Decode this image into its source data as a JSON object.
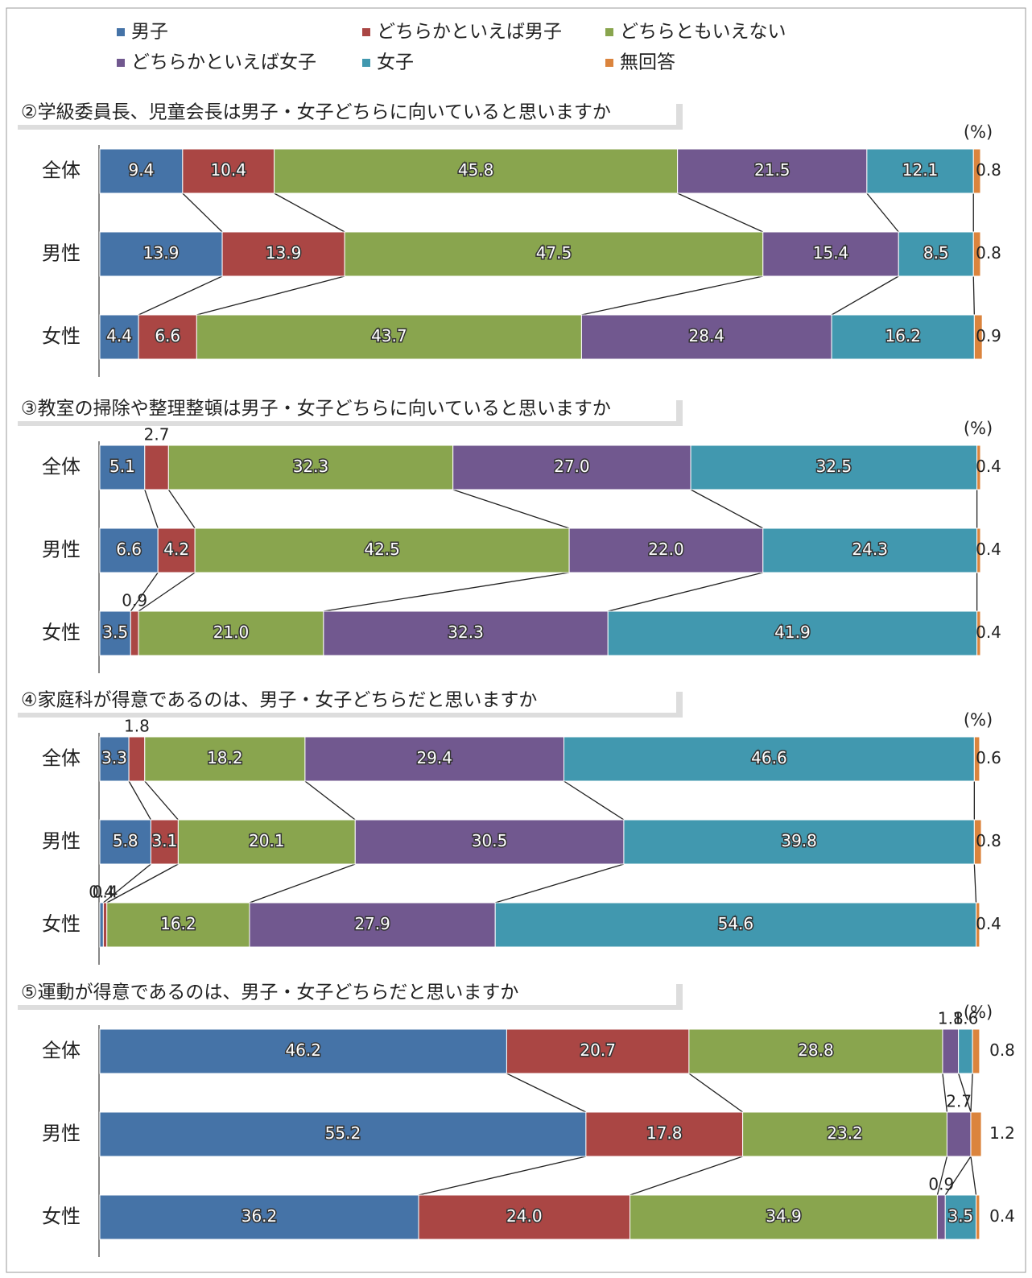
{
  "chart_data": [
    {
      "type": "bar",
      "title": "②学級委員長、児童会長は男子・女子どちらに向いていると思いますか",
      "unit": "(%)",
      "categories": [
        "全体",
        "男性",
        "女性"
      ],
      "xlim": [
        0,
        100
      ],
      "series": [
        {
          "name": "男子",
          "color": "#4573a7",
          "values": [
            9.4,
            13.9,
            4.4
          ],
          "value_labels": [
            "9.4",
            "13.9",
            "4.4"
          ]
        },
        {
          "name": "どちらかといえば男子",
          "color": "#aa4644",
          "values": [
            10.4,
            13.9,
            6.6
          ],
          "value_labels": [
            "10.4",
            "13.9",
            "6.6"
          ]
        },
        {
          "name": "どちらともいえない",
          "color": "#89a54e",
          "values": [
            45.8,
            47.5,
            43.7
          ],
          "value_labels": [
            "45.8",
            "47.5",
            "43.7"
          ]
        },
        {
          "name": "どちらかといえば女子",
          "color": "#71588f",
          "values": [
            21.5,
            15.4,
            28.4
          ],
          "value_labels": [
            "21.5",
            "15.4",
            "28.4"
          ]
        },
        {
          "name": "女子",
          "color": "#4198af",
          "values": [
            12.1,
            8.5,
            16.2
          ],
          "value_labels": [
            "12.1",
            "8.5",
            "16.2"
          ]
        },
        {
          "name": "無回答",
          "color": "#db843d",
          "values": [
            0.8,
            0.8,
            0.9
          ],
          "value_labels": [
            "0.8",
            "0.8",
            "0.9"
          ]
        }
      ]
    },
    {
      "type": "bar",
      "title": "③教室の掃除や整理整頓は男子・女子どちらに向いていると思いますか",
      "unit": "(%)",
      "categories": [
        "全体",
        "男性",
        "女性"
      ],
      "xlim": [
        0,
        100
      ],
      "series": [
        {
          "name": "男子",
          "color": "#4573a7",
          "values": [
            5.1,
            6.6,
            3.5
          ],
          "value_labels": [
            "5.1",
            "6.6",
            "3.5"
          ]
        },
        {
          "name": "どちらかといえば男子",
          "color": "#aa4644",
          "values": [
            2.7,
            4.2,
            0.9
          ],
          "value_labels": [
            "2.7",
            "4.2",
            "0.9"
          ]
        },
        {
          "name": "どちらともいえない",
          "color": "#89a54e",
          "values": [
            32.3,
            42.5,
            21.0
          ],
          "value_labels": [
            "32.3",
            "42.5",
            "21.0"
          ]
        },
        {
          "name": "どちらかといえば女子",
          "color": "#71588f",
          "values": [
            27.0,
            22.0,
            32.3
          ],
          "value_labels": [
            "27.0",
            "22.0",
            "32.3"
          ]
        },
        {
          "name": "女子",
          "color": "#4198af",
          "values": [
            32.5,
            24.3,
            41.9
          ],
          "value_labels": [
            "32.5",
            "24.3",
            "41.9"
          ]
        },
        {
          "name": "無回答",
          "color": "#db843d",
          "values": [
            0.4,
            0.4,
            0.4
          ],
          "value_labels": [
            "0.4",
            "0.4",
            "0.4"
          ]
        }
      ]
    },
    {
      "type": "bar",
      "title": "④家庭科が得意であるのは、男子・女子どちらだと思いますか",
      "unit": "(%)",
      "categories": [
        "全体",
        "男性",
        "女性"
      ],
      "xlim": [
        0,
        100
      ],
      "series": [
        {
          "name": "男子",
          "color": "#4573a7",
          "values": [
            3.3,
            5.8,
            0.4
          ],
          "value_labels": [
            "3.3",
            "5.8",
            "0.4"
          ]
        },
        {
          "name": "どちらかといえば男子",
          "color": "#aa4644",
          "values": [
            1.8,
            3.1,
            0.4
          ],
          "value_labels": [
            "1.8",
            "3.1",
            "0.4"
          ]
        },
        {
          "name": "どちらともいえない",
          "color": "#89a54e",
          "values": [
            18.2,
            20.1,
            16.2
          ],
          "value_labels": [
            "18.2",
            "20.1",
            "16.2"
          ]
        },
        {
          "name": "どちらかといえば女子",
          "color": "#71588f",
          "values": [
            29.4,
            30.5,
            27.9
          ],
          "value_labels": [
            "29.4",
            "30.5",
            "27.9"
          ]
        },
        {
          "name": "女子",
          "color": "#4198af",
          "values": [
            46.6,
            39.8,
            54.6
          ],
          "value_labels": [
            "46.6",
            "39.8",
            "54.6"
          ]
        },
        {
          "name": "無回答",
          "color": "#db843d",
          "values": [
            0.6,
            0.8,
            0.4
          ],
          "value_labels": [
            "0.6",
            "0.8",
            "0.4"
          ]
        }
      ]
    },
    {
      "type": "bar",
      "title": "⑤運動が得意であるのは、男子・女子どちらだと思いますか",
      "unit": "(%)",
      "categories": [
        "全体",
        "男性",
        "女性"
      ],
      "xlim": [
        0,
        100
      ],
      "series": [
        {
          "name": "男子",
          "color": "#4573a7",
          "values": [
            46.2,
            55.2,
            36.2
          ],
          "value_labels": [
            "46.2",
            "55.2",
            "36.2"
          ]
        },
        {
          "name": "どちらかといえば男子",
          "color": "#aa4644",
          "values": [
            20.7,
            17.8,
            24.0
          ],
          "value_labels": [
            "20.7",
            "17.8",
            "24.0"
          ]
        },
        {
          "name": "どちらともいえない",
          "color": "#89a54e",
          "values": [
            28.8,
            23.2,
            34.9
          ],
          "value_labels": [
            "28.8",
            "23.2",
            "34.9"
          ]
        },
        {
          "name": "どちらかといえば女子",
          "color": "#71588f",
          "values": [
            1.8,
            2.7,
            0.9
          ],
          "value_labels": [
            "1.8",
            "2.7",
            "0.9"
          ]
        },
        {
          "name": "女子",
          "color": "#4198af",
          "values": [
            1.6,
            0,
            3.5
          ],
          "value_labels": [
            "1.6",
            null,
            "3.5"
          ]
        },
        {
          "name": "無回答",
          "color": "#db843d",
          "values": [
            0.8,
            1.2,
            0.4
          ],
          "value_labels": [
            "0.8",
            "1.2",
            "0.4"
          ]
        }
      ]
    }
  ]
}
